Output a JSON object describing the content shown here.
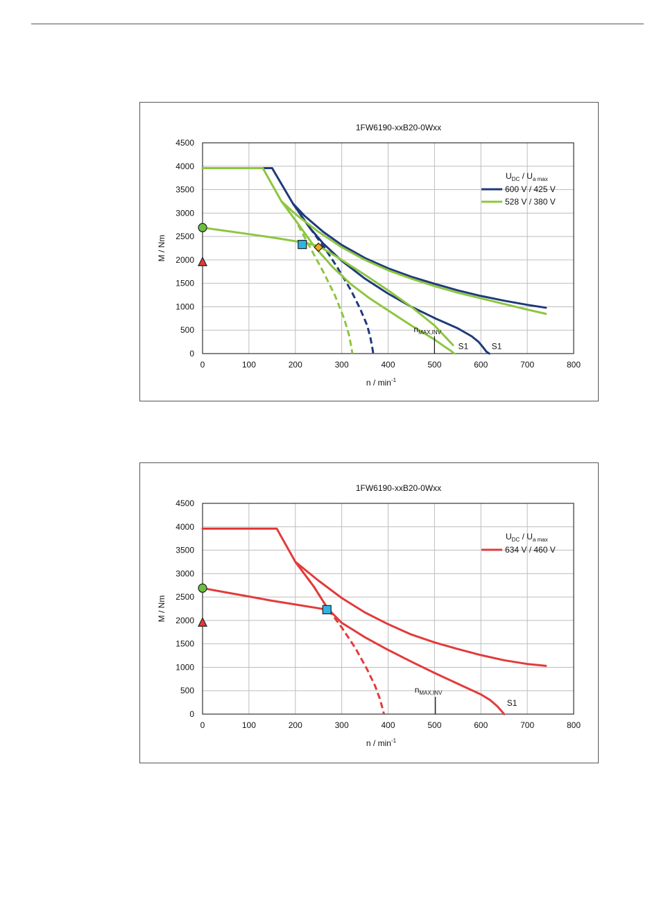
{
  "chart_data": [
    {
      "type": "line",
      "title": "1FW6190-xxB20-0Wxx",
      "xlabel": {
        "main": "n / min",
        "sup": "-1"
      },
      "ylabel": "M / Nm",
      "xlim": [
        0,
        800
      ],
      "ylim": [
        0,
        4500
      ],
      "xticks": [
        "0",
        "100",
        "200",
        "300",
        "400",
        "500",
        "600",
        "700",
        "800"
      ],
      "yticks": [
        "0",
        "500",
        "1000",
        "1500",
        "2000",
        "2500",
        "3000",
        "3500",
        "4000",
        "4500"
      ],
      "grid": true,
      "legend": {
        "position": "right",
        "header": {
          "u1": "U",
          "s1": "DC",
          "sep": " / ",
          "u2": "U",
          "s2": "a max"
        },
        "entries": [
          {
            "name": "600 V / 425 V",
            "color": "#1f3a7a"
          },
          {
            "name": "528 V / 380 V",
            "color": "#8dc63f"
          }
        ]
      },
      "series": [
        {
          "name": "600 V / 425 V",
          "color": "#1f3a7a",
          "style": "solid",
          "x": [
            0,
            150,
            195,
            220,
            260,
            300,
            350,
            400,
            450,
            500,
            550,
            600,
            650,
            700,
            740
          ],
          "y": [
            3960,
            3960,
            3200,
            2940,
            2600,
            2320,
            2040,
            1820,
            1640,
            1490,
            1350,
            1230,
            1130,
            1040,
            980
          ]
        },
        {
          "name": "600 V / 425 V",
          "color": "#1f3a7a",
          "style": "solid",
          "x": [
            195,
            230,
            260,
            300,
            350,
            400,
            450,
            500,
            550,
            580,
            595,
            605,
            612,
            618
          ],
          "y": [
            3200,
            2700,
            2350,
            1980,
            1600,
            1280,
            1000,
            760,
            540,
            370,
            250,
            130,
            40,
            0
          ]
        },
        {
          "name": "600 V / 425 V",
          "color": "#1f3a7a",
          "style": "dashed",
          "x": [
            195,
            230,
            260,
            290,
            320,
            340,
            355,
            362,
            366,
            368
          ],
          "y": [
            3200,
            2700,
            2300,
            1850,
            1350,
            950,
            600,
            330,
            120,
            0
          ]
        },
        {
          "name": "528 V / 380 V",
          "color": "#8dc63f",
          "style": "solid",
          "x": [
            0,
            130,
            170,
            200,
            250,
            300,
            350,
            400,
            450,
            500,
            550,
            600,
            650,
            700,
            740
          ],
          "y": [
            3960,
            3960,
            3250,
            2980,
            2600,
            2270,
            2000,
            1780,
            1600,
            1440,
            1300,
            1180,
            1060,
            940,
            850
          ]
        },
        {
          "name": "528 V / 380 V",
          "color": "#8dc63f",
          "style": "solid",
          "x": [
            170,
            200,
            240,
            280,
            320,
            360,
            400,
            450,
            500,
            520,
            535,
            543
          ],
          "y": [
            3250,
            2850,
            2300,
            1850,
            1480,
            1180,
            920,
            600,
            300,
            160,
            60,
            0
          ]
        },
        {
          "name": "528 V / 380 V",
          "color": "#8dc63f",
          "style": "dashed",
          "x": [
            170,
            200,
            230,
            260,
            285,
            305,
            315,
            320,
            323
          ],
          "y": [
            3250,
            2850,
            2300,
            1750,
            1250,
            750,
            420,
            180,
            0
          ]
        },
        {
          "name": "",
          "color": "#8dc63f",
          "style": "solid",
          "x": [
            0,
            50,
            100,
            150,
            200,
            250,
            300,
            350,
            400,
            450,
            500,
            540
          ],
          "y": [
            2690,
            2620,
            2550,
            2480,
            2400,
            2300,
            2000,
            1680,
            1350,
            1000,
            600,
            180
          ]
        }
      ],
      "markers": [
        {
          "x": 0,
          "y": 2690,
          "shape": "circle",
          "color": "#6abf3f"
        },
        {
          "x": 0,
          "y": 1950,
          "shape": "triangle",
          "color": "#e23b3b"
        },
        {
          "x": 215,
          "y": 2330,
          "shape": "square",
          "color": "#2eb5e0"
        },
        {
          "x": 250,
          "y": 2270,
          "shape": "diamond",
          "color": "#f5a623"
        }
      ],
      "annotations": [
        {
          "text": "n",
          "sub": "MAX,INV",
          "x": 500,
          "y": 250,
          "tick_at": 500
        },
        {
          "text": "S1",
          "x": 545,
          "y": 70
        },
        {
          "text": "S1",
          "x": 617,
          "y": 70
        }
      ]
    },
    {
      "type": "line",
      "title": "1FW6190-xxB20-0Wxx",
      "xlabel": {
        "main": "n / min",
        "sup": "-1"
      },
      "ylabel": "M / Nm",
      "xlim": [
        0,
        800
      ],
      "ylim": [
        0,
        4500
      ],
      "xticks": [
        "0",
        "100",
        "200",
        "300",
        "400",
        "500",
        "600",
        "700",
        "800"
      ],
      "yticks": [
        "0",
        "500",
        "1000",
        "1500",
        "2000",
        "2500",
        "3000",
        "3500",
        "4000",
        "4500"
      ],
      "grid": true,
      "legend": {
        "position": "right",
        "header": {
          "u1": "U",
          "s1": "DC",
          "sep": " / ",
          "u2": "U",
          "s2": "a max"
        },
        "entries": [
          {
            "name": "634 V / 460 V",
            "color": "#e23b3b"
          }
        ]
      },
      "series": [
        {
          "name": "634 V / 460 V",
          "color": "#e23b3b",
          "style": "solid",
          "x": [
            0,
            160,
            200,
            250,
            300,
            350,
            400,
            450,
            500,
            550,
            600,
            650,
            700,
            740
          ],
          "y": [
            3960,
            3960,
            3250,
            2850,
            2480,
            2170,
            1920,
            1700,
            1530,
            1390,
            1260,
            1150,
            1070,
            1030
          ]
        },
        {
          "name": "634 V / 460 V",
          "color": "#e23b3b",
          "style": "solid",
          "x": [
            200,
            240,
            270,
            300,
            350,
            400,
            450,
            500,
            550,
            600,
            620,
            635,
            645,
            650
          ],
          "y": [
            3250,
            2720,
            2250,
            1950,
            1640,
            1370,
            1120,
            880,
            650,
            420,
            300,
            170,
            60,
            0
          ]
        },
        {
          "name": "634 V / 460 V",
          "color": "#e23b3b",
          "style": "dashed",
          "x": [
            200,
            240,
            270,
            300,
            330,
            355,
            372,
            382,
            388,
            391
          ],
          "y": [
            3250,
            2720,
            2250,
            1850,
            1400,
            950,
            600,
            330,
            120,
            0
          ]
        },
        {
          "name": "",
          "color": "#e23b3b",
          "style": "solid",
          "x": [
            0,
            50,
            100,
            150,
            200,
            250,
            268
          ],
          "y": [
            2690,
            2600,
            2510,
            2420,
            2340,
            2260,
            2230
          ]
        }
      ],
      "markers": [
        {
          "x": 0,
          "y": 2690,
          "shape": "circle",
          "color": "#6abf3f"
        },
        {
          "x": 0,
          "y": 1950,
          "shape": "triangle",
          "color": "#e23b3b"
        },
        {
          "x": 268,
          "y": 2230,
          "shape": "square",
          "color": "#2eb5e0"
        }
      ],
      "annotations": [
        {
          "text": "n",
          "sub": "MAX,INV",
          "x": 502,
          "y": 250,
          "tick_at": 502
        },
        {
          "text": "S1",
          "x": 650,
          "y": 150
        }
      ]
    }
  ]
}
